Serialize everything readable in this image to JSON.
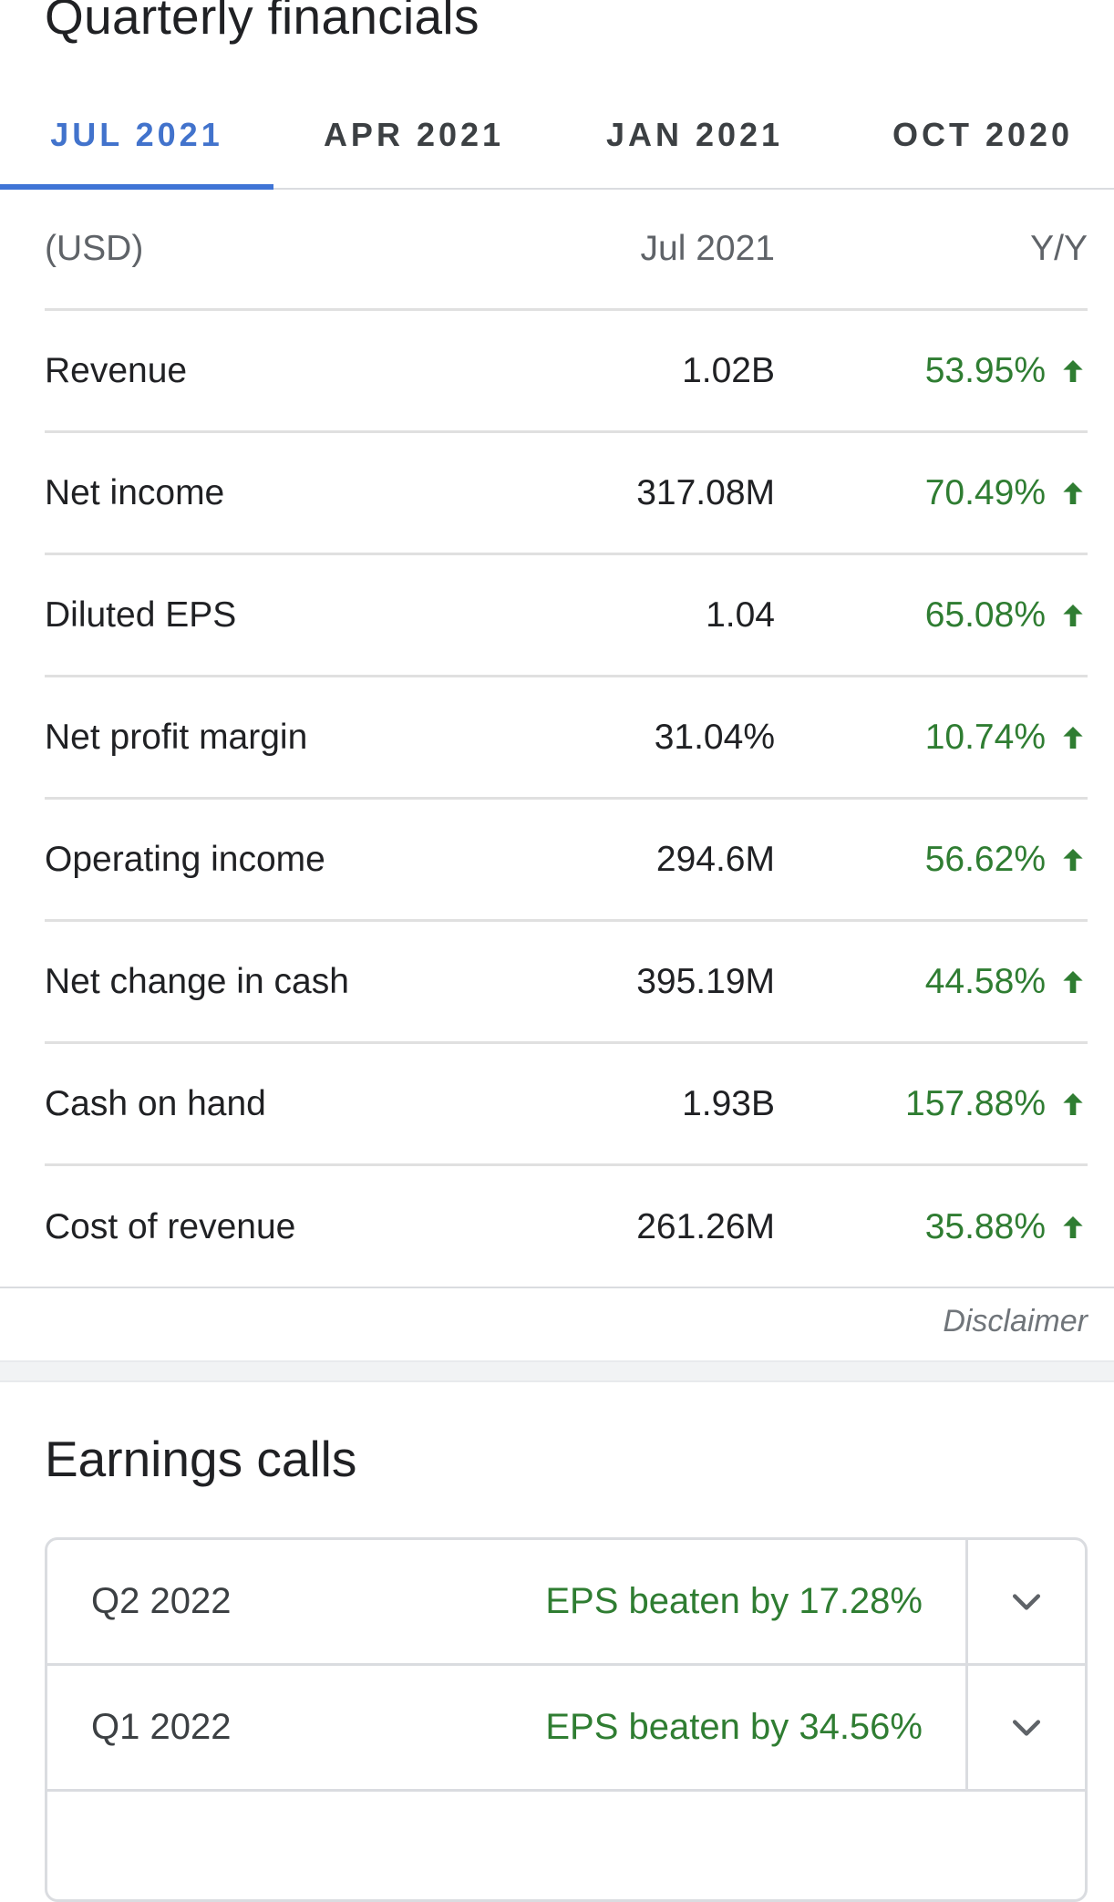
{
  "quarterly_financials": {
    "title": "Quarterly financials",
    "tabs": [
      {
        "label": "JUL 2021",
        "active": true
      },
      {
        "label": "APR 2021",
        "active": false
      },
      {
        "label": "JAN 2021",
        "active": false
      },
      {
        "label": "OCT 2020",
        "active": false
      }
    ],
    "table": {
      "headers": {
        "currency": "(USD)",
        "period": "Jul 2021",
        "yoy": "Y/Y"
      },
      "rows": [
        {
          "label": "Revenue",
          "value": "1.02B",
          "yoy": "53.95%",
          "trend": "up"
        },
        {
          "label": "Net income",
          "value": "317.08M",
          "yoy": "70.49%",
          "trend": "up"
        },
        {
          "label": "Diluted EPS",
          "value": "1.04",
          "yoy": "65.08%",
          "trend": "up"
        },
        {
          "label": "Net profit margin",
          "value": "31.04%",
          "yoy": "10.74%",
          "trend": "up"
        },
        {
          "label": "Operating income",
          "value": "294.6M",
          "yoy": "56.62%",
          "trend": "up"
        },
        {
          "label": "Net change in cash",
          "value": "395.19M",
          "yoy": "44.58%",
          "trend": "up"
        },
        {
          "label": "Cash on hand",
          "value": "1.93B",
          "yoy": "157.88%",
          "trend": "up"
        },
        {
          "label": "Cost of revenue",
          "value": "261.26M",
          "yoy": "35.88%",
          "trend": "up"
        }
      ]
    },
    "disclaimer": "Disclaimer"
  },
  "earnings_calls": {
    "title": "Earnings calls",
    "calls": [
      {
        "quarter": "Q2 2022",
        "result": "EPS beaten by 17.28%"
      },
      {
        "quarter": "Q1 2022",
        "result": "EPS beaten by 34.56%"
      }
    ]
  },
  "colors": {
    "active_tab": "#4273cc",
    "positive": "#2f7d32",
    "divider": "#e0e0e0"
  },
  "icons": {
    "trend_up": "arrow-up-icon",
    "expand": "chevron-down-icon"
  }
}
